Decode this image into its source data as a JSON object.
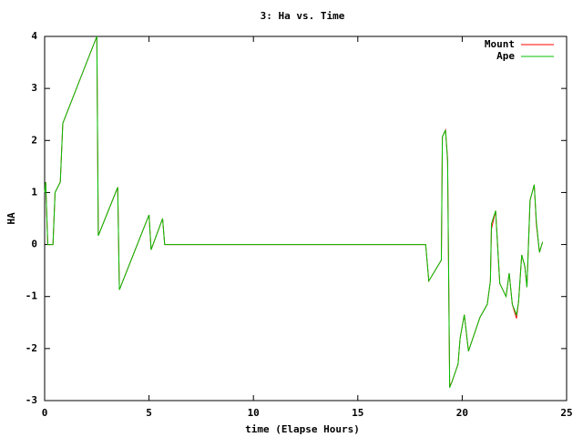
{
  "chart_data": {
    "type": "line",
    "title": "3: Ha vs. Time",
    "xlabel": "time (Elapse Hours)",
    "ylabel": "HA",
    "x": [
      0,
      0.05,
      0.15,
      0.4,
      0.5,
      0.75,
      0.87,
      2.5,
      2.57,
      3.5,
      3.58,
      5,
      5.1,
      5.65,
      5.75,
      18.25,
      18.4,
      19,
      19.05,
      19.2,
      19.3,
      19.4,
      19.5,
      19.8,
      19.9,
      20.1,
      20.3,
      20.85,
      21.2,
      21.35,
      21.4,
      21.6,
      21.8,
      22.1,
      22.25,
      22.4,
      22.6,
      22.7,
      22.85,
      23,
      23.1,
      23.25,
      23.45,
      23.55,
      23.7,
      23.85
    ],
    "series": [
      {
        "name": "Mount",
        "color": "#ff0000",
        "values": [
          1.0,
          1.2,
          0,
          0,
          1.0,
          1.2,
          2.33,
          4,
          0.17,
          1.1,
          -0.87,
          0.57,
          -0.1,
          0.5,
          0,
          0,
          -0.7,
          -0.3,
          2.07,
          2.2,
          1.65,
          -2.72,
          -2.65,
          -2.3,
          -1.8,
          -1.35,
          -2.05,
          -1.4,
          -1.15,
          -0.7,
          0.3,
          0.65,
          -0.75,
          -1.0,
          -0.55,
          -1.15,
          -1.42,
          -1.1,
          -0.2,
          -0.42,
          -0.82,
          0.85,
          1.15,
          0.4,
          -0.15,
          0.05
        ]
      },
      {
        "name": "Ape",
        "color": "#00c000",
        "values": [
          1.0,
          1.2,
          0,
          0,
          1.0,
          1.2,
          2.33,
          4,
          0.17,
          1.1,
          -0.87,
          0.57,
          -0.1,
          0.5,
          0,
          0,
          -0.7,
          -0.3,
          2.07,
          2.2,
          1.6,
          -2.75,
          -2.65,
          -2.3,
          -1.8,
          -1.35,
          -2.05,
          -1.4,
          -1.15,
          -0.7,
          0.4,
          0.65,
          -0.75,
          -1.0,
          -0.55,
          -1.15,
          -1.35,
          -1.1,
          -0.2,
          -0.42,
          -0.82,
          0.85,
          1.15,
          0.45,
          -0.15,
          0.05
        ]
      }
    ],
    "xlim": [
      0,
      25
    ],
    "ylim": [
      -3,
      4
    ],
    "xticks": [
      0,
      5,
      10,
      15,
      20,
      25
    ],
    "yticks": [
      -3,
      -2,
      -1,
      0,
      1,
      2,
      3,
      4
    ]
  }
}
